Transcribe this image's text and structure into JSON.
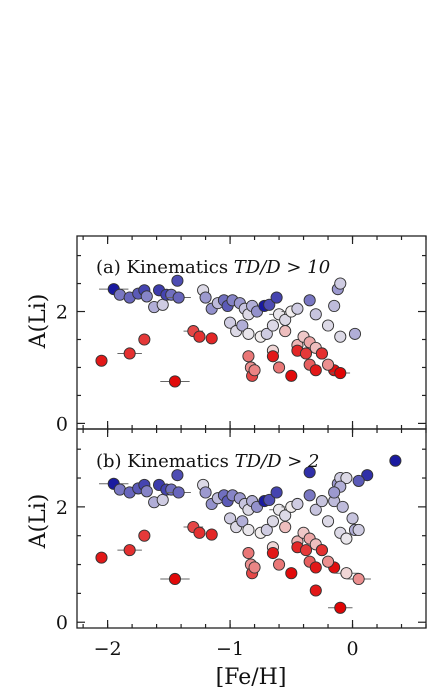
{
  "chart_data": {
    "type": "scatter",
    "xlabel": "[Fe/H]",
    "ylabel": "A(Li)",
    "xlim": [
      -2.25,
      0.6
    ],
    "x_ticks": [
      -2,
      -1,
      0
    ],
    "x_tick_labels": [
      "−2",
      "−1",
      "0"
    ],
    "y_ticks": [
      0,
      2
    ],
    "y_tick_labels": [
      "0",
      "2"
    ],
    "colormap": {
      "low": "#1a1aa0",
      "mid": "#f2eeee",
      "high": "#e00000"
    },
    "panels": [
      {
        "title_text": "(a) Kinematics ",
        "title_math": "TD/D > 10",
        "ylim": [
          -0.1,
          3.35
        ],
        "points": [
          {
            "x": -1.95,
            "y": 2.4,
            "c": 0.0,
            "xerr": 0.12
          },
          {
            "x": -1.9,
            "y": 2.3,
            "c": 0.22
          },
          {
            "x": -1.82,
            "y": 2.25,
            "c": 0.18
          },
          {
            "x": -1.75,
            "y": 2.32,
            "c": 0.15
          },
          {
            "x": -1.7,
            "y": 2.38,
            "c": 0.1
          },
          {
            "x": -1.68,
            "y": 2.27,
            "c": 0.25
          },
          {
            "x": -1.62,
            "y": 2.08,
            "c": 0.35
          },
          {
            "x": -1.58,
            "y": 2.38,
            "c": 0.08
          },
          {
            "x": -1.55,
            "y": 2.12,
            "c": 0.42
          },
          {
            "x": -1.52,
            "y": 2.3,
            "c": 0.1
          },
          {
            "x": -1.48,
            "y": 2.3,
            "c": 0.2
          },
          {
            "x": -1.43,
            "y": 2.55,
            "c": 0.12
          },
          {
            "x": -1.42,
            "y": 2.25,
            "c": 0.18,
            "xerr": 0.1
          },
          {
            "x": -1.22,
            "y": 2.38,
            "c": 0.45
          },
          {
            "x": -1.2,
            "y": 2.25,
            "c": 0.3
          },
          {
            "x": -1.15,
            "y": 2.05,
            "c": 0.28
          },
          {
            "x": -1.1,
            "y": 2.15,
            "c": 0.38
          },
          {
            "x": -1.05,
            "y": 2.2,
            "c": 0.2
          },
          {
            "x": -1.02,
            "y": 2.1,
            "c": 0.15
          },
          {
            "x": -0.98,
            "y": 2.2,
            "c": 0.25
          },
          {
            "x": -0.92,
            "y": 2.15,
            "c": 0.3
          },
          {
            "x": -0.88,
            "y": 2.05,
            "c": 0.4
          },
          {
            "x": -0.85,
            "y": 1.95,
            "c": 0.45
          },
          {
            "x": -0.82,
            "y": 2.1,
            "c": 0.35
          },
          {
            "x": -0.78,
            "y": 2.0,
            "c": 0.28
          },
          {
            "x": -0.72,
            "y": 2.1,
            "c": 0.0
          },
          {
            "x": -0.68,
            "y": 2.12,
            "c": 0.12
          },
          {
            "x": -0.62,
            "y": 2.25,
            "c": 0.1
          },
          {
            "x": -0.6,
            "y": 1.95,
            "c": 0.48,
            "xerr": 0.08
          },
          {
            "x": -0.55,
            "y": 1.85,
            "c": 0.45
          },
          {
            "x": -0.5,
            "y": 2.0,
            "c": 0.5,
            "xerr": 0.08
          },
          {
            "x": -0.45,
            "y": 2.05,
            "c": 0.42
          },
          {
            "x": -0.35,
            "y": 2.2,
            "c": 0.22
          },
          {
            "x": -0.3,
            "y": 1.95,
            "c": 0.4
          },
          {
            "x": -0.2,
            "y": 1.75,
            "c": 0.45
          },
          {
            "x": -0.15,
            "y": 2.1,
            "c": 0.38
          },
          {
            "x": -0.12,
            "y": 2.4,
            "c": 0.3
          },
          {
            "x": -0.1,
            "y": 2.5,
            "c": 0.42
          },
          {
            "x": -0.1,
            "y": 1.55,
            "c": 0.45
          },
          {
            "x": 0.02,
            "y": 1.6,
            "c": 0.35
          },
          {
            "x": -1.0,
            "y": 1.8,
            "c": 0.42
          },
          {
            "x": -0.95,
            "y": 1.65,
            "c": 0.45
          },
          {
            "x": -0.9,
            "y": 1.75,
            "c": 0.35
          },
          {
            "x": -0.85,
            "y": 1.6,
            "c": 0.48
          },
          {
            "x": -0.75,
            "y": 1.55,
            "c": 0.5
          },
          {
            "x": -0.7,
            "y": 1.6,
            "c": 0.42
          },
          {
            "x": -0.65,
            "y": 1.75,
            "c": 0.45
          },
          {
            "x": -0.55,
            "y": 1.65,
            "c": 0.6
          },
          {
            "x": -0.45,
            "y": 1.4,
            "c": 0.62
          },
          {
            "x": -0.4,
            "y": 1.55,
            "c": 0.58
          },
          {
            "x": -0.35,
            "y": 1.45,
            "c": 0.65
          },
          {
            "x": -0.3,
            "y": 1.35,
            "c": 0.6
          },
          {
            "x": -0.25,
            "y": 1.25,
            "c": 0.62
          },
          {
            "x": -0.65,
            "y": 1.3,
            "c": 0.55
          },
          {
            "x": -2.05,
            "y": 1.12,
            "c": 0.95
          },
          {
            "x": -1.82,
            "y": 1.25,
            "c": 0.9,
            "xerr": 0.1
          },
          {
            "x": -1.7,
            "y": 1.5,
            "c": 0.88
          },
          {
            "x": -1.45,
            "y": 0.75,
            "c": 0.98,
            "xerr": 0.12
          },
          {
            "x": -1.3,
            "y": 1.65,
            "c": 0.85,
            "xerr": 0.08
          },
          {
            "x": -1.25,
            "y": 1.55,
            "c": 0.9
          },
          {
            "x": -1.15,
            "y": 1.52,
            "c": 0.92
          },
          {
            "x": -0.85,
            "y": 1.2,
            "c": 0.75
          },
          {
            "x": -0.83,
            "y": 1.0,
            "c": 0.7
          },
          {
            "x": -0.82,
            "y": 0.85,
            "c": 0.85
          },
          {
            "x": -0.8,
            "y": 0.95,
            "c": 0.72
          },
          {
            "x": -0.65,
            "y": 1.2,
            "c": 0.95
          },
          {
            "x": -0.6,
            "y": 1.0,
            "c": 0.75
          },
          {
            "x": -0.5,
            "y": 0.85,
            "c": 0.98
          },
          {
            "x": -0.45,
            "y": 1.3,
            "c": 0.92
          },
          {
            "x": -0.38,
            "y": 1.25,
            "c": 0.88
          },
          {
            "x": -0.35,
            "y": 1.05,
            "c": 0.8
          },
          {
            "x": -0.3,
            "y": 0.95,
            "c": 0.95
          },
          {
            "x": -0.25,
            "y": 1.25,
            "c": 0.9
          },
          {
            "x": -0.15,
            "y": 0.95,
            "c": 0.97
          },
          {
            "x": -0.1,
            "y": 0.9,
            "c": 0.99,
            "xerr": 0.08
          },
          {
            "x": -0.2,
            "y": 1.05,
            "c": 0.7
          }
        ]
      },
      {
        "title_text": "(b) Kinematics ",
        "title_math": "TD/D > 2",
        "ylim": [
          -0.1,
          3.35
        ],
        "points": [
          {
            "x": -1.95,
            "y": 2.4,
            "c": 0.0,
            "xerr": 0.12
          },
          {
            "x": -1.9,
            "y": 2.3,
            "c": 0.22
          },
          {
            "x": -1.82,
            "y": 2.25,
            "c": 0.18
          },
          {
            "x": -1.75,
            "y": 2.32,
            "c": 0.15
          },
          {
            "x": -1.7,
            "y": 2.38,
            "c": 0.1
          },
          {
            "x": -1.68,
            "y": 2.27,
            "c": 0.25
          },
          {
            "x": -1.62,
            "y": 2.08,
            "c": 0.35
          },
          {
            "x": -1.58,
            "y": 2.38,
            "c": 0.08
          },
          {
            "x": -1.55,
            "y": 2.12,
            "c": 0.42
          },
          {
            "x": -1.52,
            "y": 2.3,
            "c": 0.1
          },
          {
            "x": -1.48,
            "y": 2.3,
            "c": 0.2
          },
          {
            "x": -1.43,
            "y": 2.55,
            "c": 0.12
          },
          {
            "x": -1.42,
            "y": 2.25,
            "c": 0.18,
            "xerr": 0.1
          },
          {
            "x": -1.22,
            "y": 2.38,
            "c": 0.45
          },
          {
            "x": -1.2,
            "y": 2.25,
            "c": 0.3
          },
          {
            "x": -1.15,
            "y": 2.05,
            "c": 0.28
          },
          {
            "x": -1.1,
            "y": 2.15,
            "c": 0.38
          },
          {
            "x": -1.05,
            "y": 2.2,
            "c": 0.2
          },
          {
            "x": -1.02,
            "y": 2.1,
            "c": 0.15
          },
          {
            "x": -0.98,
            "y": 2.2,
            "c": 0.25
          },
          {
            "x": -0.92,
            "y": 2.15,
            "c": 0.3
          },
          {
            "x": -0.88,
            "y": 2.05,
            "c": 0.4
          },
          {
            "x": -0.85,
            "y": 1.95,
            "c": 0.45
          },
          {
            "x": -0.82,
            "y": 2.1,
            "c": 0.35
          },
          {
            "x": -0.78,
            "y": 2.0,
            "c": 0.28
          },
          {
            "x": -0.72,
            "y": 2.1,
            "c": 0.0
          },
          {
            "x": -0.68,
            "y": 2.12,
            "c": 0.12
          },
          {
            "x": -0.62,
            "y": 2.25,
            "c": 0.1
          },
          {
            "x": -0.6,
            "y": 1.95,
            "c": 0.48,
            "xerr": 0.08
          },
          {
            "x": -0.55,
            "y": 1.85,
            "c": 0.45
          },
          {
            "x": -0.5,
            "y": 2.0,
            "c": 0.5,
            "xerr": 0.08
          },
          {
            "x": -0.45,
            "y": 2.05,
            "c": 0.42
          },
          {
            "x": -0.35,
            "y": 2.2,
            "c": 0.22
          },
          {
            "x": -0.3,
            "y": 1.95,
            "c": 0.4
          },
          {
            "x": -0.2,
            "y": 1.75,
            "c": 0.45
          },
          {
            "x": -0.15,
            "y": 2.1,
            "c": 0.38
          },
          {
            "x": -0.12,
            "y": 2.4,
            "c": 0.3
          },
          {
            "x": -0.1,
            "y": 2.5,
            "c": 0.42
          },
          {
            "x": -0.1,
            "y": 1.55,
            "c": 0.45
          },
          {
            "x": 0.02,
            "y": 1.6,
            "c": 0.35
          },
          {
            "x": -1.0,
            "y": 1.8,
            "c": 0.42
          },
          {
            "x": -0.95,
            "y": 1.65,
            "c": 0.45
          },
          {
            "x": -0.9,
            "y": 1.75,
            "c": 0.35
          },
          {
            "x": -0.85,
            "y": 1.6,
            "c": 0.48
          },
          {
            "x": -0.75,
            "y": 1.55,
            "c": 0.5
          },
          {
            "x": -0.7,
            "y": 1.6,
            "c": 0.42
          },
          {
            "x": -0.65,
            "y": 1.75,
            "c": 0.45
          },
          {
            "x": -0.55,
            "y": 1.65,
            "c": 0.6
          },
          {
            "x": -0.45,
            "y": 1.4,
            "c": 0.62
          },
          {
            "x": -0.4,
            "y": 1.55,
            "c": 0.58
          },
          {
            "x": -0.35,
            "y": 1.45,
            "c": 0.65
          },
          {
            "x": -0.3,
            "y": 1.35,
            "c": 0.6
          },
          {
            "x": -0.25,
            "y": 1.25,
            "c": 0.62
          },
          {
            "x": -0.65,
            "y": 1.3,
            "c": 0.55
          },
          {
            "x": -2.05,
            "y": 1.12,
            "c": 0.95
          },
          {
            "x": -1.82,
            "y": 1.25,
            "c": 0.9,
            "xerr": 0.1
          },
          {
            "x": -1.7,
            "y": 1.5,
            "c": 0.88
          },
          {
            "x": -1.45,
            "y": 0.75,
            "c": 0.98,
            "xerr": 0.12
          },
          {
            "x": -1.3,
            "y": 1.65,
            "c": 0.85,
            "xerr": 0.08
          },
          {
            "x": -1.25,
            "y": 1.55,
            "c": 0.9
          },
          {
            "x": -1.15,
            "y": 1.52,
            "c": 0.92
          },
          {
            "x": -0.85,
            "y": 1.2,
            "c": 0.75
          },
          {
            "x": -0.83,
            "y": 1.0,
            "c": 0.7
          },
          {
            "x": -0.82,
            "y": 0.85,
            "c": 0.85
          },
          {
            "x": -0.8,
            "y": 0.95,
            "c": 0.72
          },
          {
            "x": -0.65,
            "y": 1.2,
            "c": 0.95
          },
          {
            "x": -0.6,
            "y": 1.0,
            "c": 0.75
          },
          {
            "x": -0.5,
            "y": 0.85,
            "c": 0.98
          },
          {
            "x": -0.45,
            "y": 1.3,
            "c": 0.92
          },
          {
            "x": -0.38,
            "y": 1.25,
            "c": 0.88
          },
          {
            "x": -0.35,
            "y": 1.05,
            "c": 0.8
          },
          {
            "x": -0.3,
            "y": 0.95,
            "c": 0.95
          },
          {
            "x": -0.25,
            "y": 1.25,
            "c": 0.9
          },
          {
            "x": -0.15,
            "y": 0.95,
            "c": 0.97
          },
          {
            "x": -0.2,
            "y": 1.05,
            "c": 0.7
          },
          {
            "x": 0.35,
            "y": 2.8,
            "c": 0.0
          },
          {
            "x": 0.12,
            "y": 2.55,
            "c": 0.05
          },
          {
            "x": 0.05,
            "y": 2.45,
            "c": 0.15
          },
          {
            "x": -0.05,
            "y": 2.5,
            "c": 0.45
          },
          {
            "x": -0.1,
            "y": 2.35,
            "c": 0.35
          },
          {
            "x": -0.15,
            "y": 2.25,
            "c": 0.3
          },
          {
            "x": -0.25,
            "y": 2.1,
            "c": 0.4
          },
          {
            "x": -0.08,
            "y": 2.0,
            "c": 0.38
          },
          {
            "x": 0.0,
            "y": 1.8,
            "c": 0.4
          },
          {
            "x": -0.05,
            "y": 1.45,
            "c": 0.48
          },
          {
            "x": 0.05,
            "y": 1.6,
            "c": 0.42
          },
          {
            "x": -0.35,
            "y": 2.6,
            "c": 0.05
          },
          {
            "x": -0.3,
            "y": 0.55,
            "c": 0.95
          },
          {
            "x": -0.1,
            "y": 0.25,
            "c": 0.99,
            "xerr": 0.1
          },
          {
            "x": -0.05,
            "y": 0.85,
            "c": 0.55,
            "xerr": 0.1
          },
          {
            "x": 0.05,
            "y": 0.75,
            "c": 0.7,
            "xerr": 0.1
          }
        ]
      }
    ]
  }
}
